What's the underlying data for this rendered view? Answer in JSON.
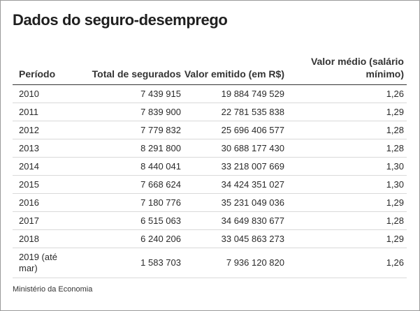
{
  "title": "Dados do seguro-desemprego",
  "table": {
    "headers": [
      "Período",
      "Total de segurados",
      "Valor emitido (em R$)",
      "Valor médio (salário mínimo)"
    ],
    "rows": [
      [
        "2010",
        "7 439 915",
        "19 884 749 529",
        "1,26"
      ],
      [
        "2011",
        "7 839 900",
        "22 781 535 838",
        "1,29"
      ],
      [
        "2012",
        "7 779 832",
        "25 696 406 577",
        "1,28"
      ],
      [
        "2013",
        "8 291 800",
        "30 688 177 430",
        "1,28"
      ],
      [
        "2014",
        "8 440 041",
        "33 218 007 669",
        "1,30"
      ],
      [
        "2015",
        "7 668 624",
        "34 424 351 027",
        "1,30"
      ],
      [
        "2016",
        "7 180 776",
        "35 231 049 036",
        "1,29"
      ],
      [
        "2017",
        "6 515 063",
        "34 649 830 677",
        "1,28"
      ],
      [
        "2018",
        "6 240 206",
        "33 045 863 273",
        "1,29"
      ],
      [
        "2019 (até mar)",
        "1 583 703",
        "7 936 120 820",
        "1,26"
      ]
    ]
  },
  "source": "Ministério da Economia"
}
